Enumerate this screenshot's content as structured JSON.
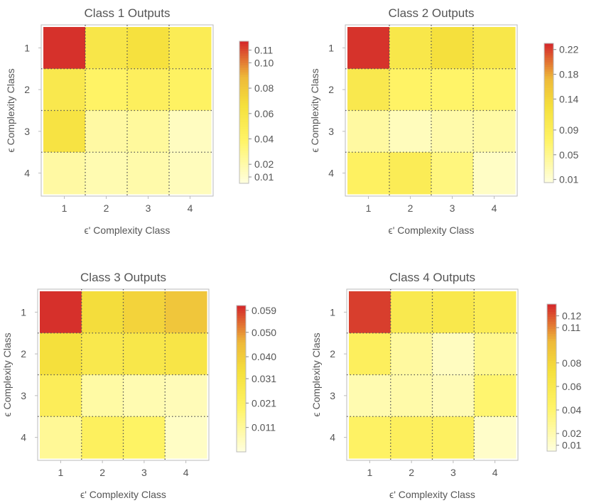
{
  "chart_data": [
    {
      "type": "heatmap",
      "title": "Class 1 Outputs",
      "xlabel": "ϵ' Complexity Class",
      "ylabel": "ϵ Complexity Class",
      "x_categories": [
        "1",
        "2",
        "3",
        "4"
      ],
      "y_categories": [
        "1",
        "2",
        "3",
        "4"
      ],
      "values": [
        [
          0.115,
          0.058,
          0.065,
          0.05
        ],
        [
          0.055,
          0.04,
          0.045,
          0.042
        ],
        [
          0.062,
          0.022,
          0.024,
          0.014
        ],
        [
          0.022,
          0.018,
          0.02,
          0.015
        ]
      ],
      "colorbar": {
        "range": [
          0.005,
          0.117
        ],
        "ticks": [
          0.11,
          0.1,
          0.08,
          0.06,
          0.04,
          0.02,
          0.01
        ],
        "tick_labels": [
          "0.11",
          "0.10",
          "0.08",
          "0.06",
          "0.04",
          "0.02",
          "0.01"
        ]
      },
      "grid": true
    },
    {
      "type": "heatmap",
      "title": "Class 2 Outputs",
      "xlabel": "ϵ' Complexity Class",
      "ylabel": "ϵ Complexity Class",
      "x_categories": [
        "1",
        "2",
        "3",
        "4"
      ],
      "y_categories": [
        "1",
        "2",
        "3",
        "4"
      ],
      "values": [
        [
          0.225,
          0.11,
          0.128,
          0.11
        ],
        [
          0.105,
          0.075,
          0.072,
          0.07
        ],
        [
          0.04,
          0.025,
          0.035,
          0.038
        ],
        [
          0.08,
          0.095,
          0.06,
          0.02
        ]
      ],
      "colorbar": {
        "range": [
          0.005,
          0.23
        ],
        "ticks": [
          0.22,
          0.18,
          0.14,
          0.09,
          0.05,
          0.01
        ],
        "tick_labels": [
          "0.22",
          "0.18",
          "0.14",
          "0.09",
          "0.05",
          "0.01"
        ]
      },
      "grid": true
    },
    {
      "type": "heatmap",
      "title": "Class 3 Outputs",
      "xlabel": "ϵ' Complexity Class",
      "ylabel": "ϵ Complexity Class",
      "x_categories": [
        "1",
        "2",
        "3",
        "4"
      ],
      "y_categories": [
        "1",
        "2",
        "3",
        "4"
      ],
      "values": [
        [
          0.06,
          0.035,
          0.038,
          0.042
        ],
        [
          0.034,
          0.028,
          0.029,
          0.03
        ],
        [
          0.024,
          0.01,
          0.008,
          0.007
        ],
        [
          0.012,
          0.022,
          0.02,
          0.005
        ]
      ],
      "colorbar": {
        "range": [
          0.001,
          0.061
        ],
        "ticks": [
          0.059,
          0.05,
          0.04,
          0.031,
          0.021,
          0.011
        ],
        "tick_labels": [
          "0.059",
          "0.050",
          "0.040",
          "0.031",
          "0.021",
          "0.011"
        ]
      },
      "grid": true
    },
    {
      "type": "heatmap",
      "title": "Class 4 Outputs",
      "xlabel": "ϵ' Complexity Class",
      "ylabel": "ϵ Complexity Class",
      "x_categories": [
        "1",
        "2",
        "3",
        "4"
      ],
      "y_categories": [
        "1",
        "2",
        "3",
        "4"
      ],
      "values": [
        [
          0.125,
          0.06,
          0.062,
          0.055
        ],
        [
          0.05,
          0.025,
          0.015,
          0.03
        ],
        [
          0.02,
          0.022,
          0.018,
          0.04
        ],
        [
          0.045,
          0.05,
          0.048,
          0.012
        ]
      ],
      "colorbar": {
        "range": [
          0.005,
          0.13
        ],
        "ticks": [
          0.12,
          0.11,
          0.08,
          0.06,
          0.04,
          0.02,
          0.01
        ],
        "tick_labels": [
          "0.12",
          "0.11",
          "0.08",
          "0.06",
          "0.04",
          "0.02",
          "0.01"
        ]
      },
      "grid": true
    }
  ],
  "colors": {
    "scale_low": "#ffffe0",
    "scale_mid_low": "#fff467",
    "scale_mid": "#f5e03c",
    "scale_mid_high": "#eeb93a",
    "scale_high": "#d4262a",
    "frame": "#bbbbbb",
    "grid": "#555555",
    "text": "#555555"
  }
}
